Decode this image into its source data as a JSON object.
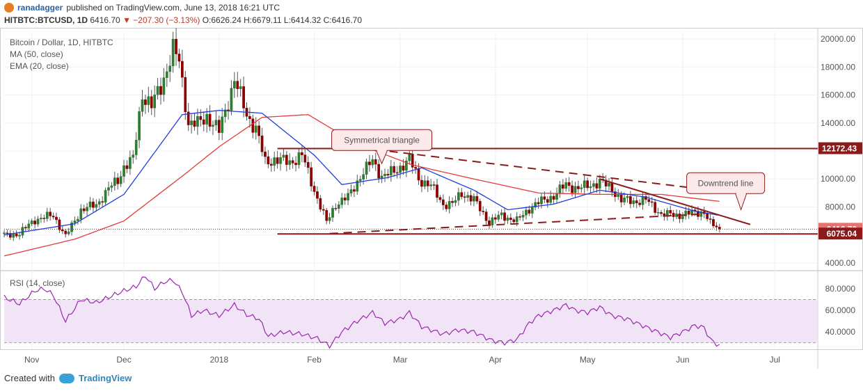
{
  "header": {
    "user": "ranadagger",
    "published": "published on TradingView.com, June 13, 2018 16:21 UTC",
    "symbol": "HITBTC:BTCUSD, 1D",
    "last": "6416.70",
    "change": "▼ −207.30 (−3.13%)",
    "ohlc": "O:6626.24 H:6679.11 L:6414.32 C:6416.70"
  },
  "footer": {
    "created_with": "Created with",
    "brand": "TradingView"
  },
  "colors": {
    "candle_up": "#2e7d32",
    "candle_down": "#8b0000",
    "ma": "#e53935",
    "ema": "#1e3fd8",
    "rsi": "#9c27b0",
    "rsi_band": "#f1e4f7",
    "annot": "#8b1a1a"
  },
  "chart_data": [
    {
      "type": "candlestick",
      "title": "Bitcoin / Dollar, 1D, HITBTC",
      "indicators": [
        "MA (50, close)",
        "EMA (20, close)"
      ],
      "ylim": [
        3500,
        20500
      ],
      "yticks": [
        4000,
        6000,
        8000,
        10000,
        12000,
        14000,
        16000,
        18000,
        20000
      ],
      "ytick_labels": [
        "4000.00",
        "6000.00",
        "8000.00",
        "10000.00",
        "12000.00",
        "14000.00",
        "16000.00",
        "18000.00",
        "20000.00"
      ],
      "xlim": [
        "2017-10-23",
        "2018-07-15"
      ],
      "x_tick_dates": [
        "2017-11-01",
        "2017-12-01",
        "2018-01-01",
        "2018-02-01",
        "2018-03-01",
        "2018-04-01",
        "2018-05-01",
        "2018-06-01",
        "2018-07-01"
      ],
      "x_tick_labels": [
        "Nov",
        "Dec",
        "2018",
        "Feb",
        "Mar",
        "Apr",
        "May",
        "Jun",
        "Jul"
      ],
      "close_anchors": [
        [
          "2017-10-23",
          5950
        ],
        [
          "2017-10-28",
          6100
        ],
        [
          "2017-11-02",
          7100
        ],
        [
          "2017-11-06",
          7300
        ],
        [
          "2017-11-08",
          7400
        ],
        [
          "2017-11-12",
          5900
        ],
        [
          "2017-11-17",
          7800
        ],
        [
          "2017-11-22",
          8150
        ],
        [
          "2017-11-26",
          9300
        ],
        [
          "2017-11-29",
          9900
        ],
        [
          "2017-12-01",
          10900
        ],
        [
          "2017-12-04",
          11400
        ],
        [
          "2017-12-07",
          16100
        ],
        [
          "2017-12-10",
          15200
        ],
        [
          "2017-12-13",
          16600
        ],
        [
          "2017-12-17",
          19200
        ],
        [
          "2017-12-19",
          18400
        ],
        [
          "2017-12-22",
          14000
        ],
        [
          "2017-12-25",
          13900
        ],
        [
          "2017-12-28",
          14500
        ],
        [
          "2018-01-01",
          13400
        ],
        [
          "2018-01-06",
          17100
        ],
        [
          "2018-01-10",
          14600
        ],
        [
          "2018-01-13",
          13600
        ],
        [
          "2018-01-16",
          11200
        ],
        [
          "2018-01-19",
          11400
        ],
        [
          "2018-01-24",
          11200
        ],
        [
          "2018-01-28",
          11700
        ],
        [
          "2018-02-01",
          9200
        ],
        [
          "2018-02-05",
          6900
        ],
        [
          "2018-02-08",
          8200
        ],
        [
          "2018-02-12",
          8700
        ],
        [
          "2018-02-16",
          10200
        ],
        [
          "2018-02-20",
          11300
        ],
        [
          "2018-02-23",
          10200
        ],
        [
          "2018-02-27",
          10500
        ],
        [
          "2018-03-04",
          11400
        ],
        [
          "2018-03-07",
          10000
        ],
        [
          "2018-03-11",
          9500
        ],
        [
          "2018-03-15",
          8200
        ],
        [
          "2018-03-18",
          8200
        ],
        [
          "2018-03-21",
          9000
        ],
        [
          "2018-03-25",
          8500
        ],
        [
          "2018-03-30",
          6900
        ],
        [
          "2018-04-03",
          7400
        ],
        [
          "2018-04-08",
          7000
        ],
        [
          "2018-04-12",
          7900
        ],
        [
          "2018-04-15",
          8300
        ],
        [
          "2018-04-20",
          8800
        ],
        [
          "2018-04-24",
          9600
        ],
        [
          "2018-04-28",
          9300
        ],
        [
          "2018-05-05",
          9800
        ],
        [
          "2018-05-09",
          9300
        ],
        [
          "2018-05-12",
          8500
        ],
        [
          "2018-05-16",
          8400
        ],
        [
          "2018-05-20",
          8500
        ],
        [
          "2018-05-25",
          7500
        ],
        [
          "2018-05-30",
          7400
        ],
        [
          "2018-06-05",
          7600
        ],
        [
          "2018-06-08",
          7650
        ],
        [
          "2018-06-10",
          6800
        ],
        [
          "2018-06-13",
          6416.7
        ]
      ],
      "ma50_anchors": [
        [
          "2017-10-23",
          4500
        ],
        [
          "2017-11-15",
          5700
        ],
        [
          "2017-12-01",
          7000
        ],
        [
          "2017-12-20",
          10200
        ],
        [
          "2018-01-01",
          12300
        ],
        [
          "2018-01-15",
          14400
        ],
        [
          "2018-01-30",
          14600
        ],
        [
          "2018-02-15",
          12500
        ],
        [
          "2018-03-05",
          11000
        ],
        [
          "2018-03-25",
          10000
        ],
        [
          "2018-04-15",
          9000
        ],
        [
          "2018-05-05",
          8900
        ],
        [
          "2018-05-25",
          8900
        ],
        [
          "2018-06-13",
          8400
        ]
      ],
      "ema20_anchors": [
        [
          "2017-10-23",
          6000
        ],
        [
          "2017-11-15",
          6800
        ],
        [
          "2017-12-01",
          8900
        ],
        [
          "2017-12-20",
          14600
        ],
        [
          "2018-01-01",
          14900
        ],
        [
          "2018-01-15",
          14700
        ],
        [
          "2018-02-01",
          11700
        ],
        [
          "2018-02-10",
          9600
        ],
        [
          "2018-02-25",
          10100
        ],
        [
          "2018-03-08",
          10800
        ],
        [
          "2018-03-25",
          9200
        ],
        [
          "2018-04-05",
          7800
        ],
        [
          "2018-04-20",
          8200
        ],
        [
          "2018-05-05",
          9200
        ],
        [
          "2018-05-20",
          8700
        ],
        [
          "2018-06-05",
          7700
        ],
        [
          "2018-06-13",
          7400
        ]
      ],
      "price_labels": [
        {
          "value": 12172.43,
          "text": "12172.43"
        },
        {
          "value": 6416.7,
          "text": "6416.70"
        },
        {
          "value": 6075.04,
          "text": "6075.04"
        }
      ],
      "annotations": [
        {
          "text": "Symmetrical triangle",
          "box_date": "2018-02-23",
          "box_value": 12780,
          "pointer_date": "2018-02-23",
          "pointer_value": 11100
        },
        {
          "text": "Downtrend line",
          "box_date": "2018-06-15",
          "box_value": 9700,
          "pointer_date": "2018-06-20",
          "pointer_value": 7800
        }
      ],
      "horizontal_lines": [
        {
          "from": "2018-01-20",
          "to": "2018-07-15",
          "value": 12172.43
        },
        {
          "from": "2018-01-20",
          "to": "2018-07-15",
          "value": 6075.04
        }
      ],
      "trend_lines": [
        {
          "from": [
            "2018-02-21",
            12100
          ],
          "to": [
            "2018-06-16",
            9050
          ],
          "style": "dashed"
        },
        {
          "from": [
            "2018-02-06",
            6100
          ],
          "to": [
            "2018-06-08",
            7500
          ],
          "style": "dashed"
        },
        {
          "from": [
            "2018-05-05",
            10000
          ],
          "to": [
            "2018-06-23",
            6750
          ],
          "style": "solid"
        }
      ]
    },
    {
      "type": "line",
      "title": "RSI (14, close)",
      "ylim": [
        24,
        96
      ],
      "yticks": [
        40,
        60,
        80
      ],
      "ytick_labels": [
        "40.0000",
        "60.0000",
        "80.0000"
      ],
      "band": [
        30,
        70
      ],
      "x_tick_dates": [
        "2017-11-01",
        "2017-12-01",
        "2018-01-01",
        "2018-02-01",
        "2018-03-01",
        "2018-04-01",
        "2018-05-01",
        "2018-06-01",
        "2018-07-01"
      ],
      "rsi_anchors": [
        [
          "2017-10-23",
          72
        ],
        [
          "2017-10-28",
          66
        ],
        [
          "2017-11-02",
          78
        ],
        [
          "2017-11-05",
          80
        ],
        [
          "2017-11-08",
          74
        ],
        [
          "2017-11-12",
          50
        ],
        [
          "2017-11-17",
          70
        ],
        [
          "2017-11-22",
          67
        ],
        [
          "2017-11-26",
          72
        ],
        [
          "2017-12-01",
          78
        ],
        [
          "2017-12-05",
          82
        ],
        [
          "2017-12-08",
          92
        ],
        [
          "2017-12-11",
          80
        ],
        [
          "2017-12-14",
          86
        ],
        [
          "2017-12-17",
          88
        ],
        [
          "2017-12-20",
          77
        ],
        [
          "2017-12-23",
          55
        ],
        [
          "2017-12-27",
          60
        ],
        [
          "2018-01-01",
          55
        ],
        [
          "2018-01-06",
          65
        ],
        [
          "2018-01-10",
          56
        ],
        [
          "2018-01-14",
          52
        ],
        [
          "2018-01-17",
          36
        ],
        [
          "2018-01-22",
          40
        ],
        [
          "2018-01-28",
          38
        ],
        [
          "2018-02-02",
          34
        ],
        [
          "2018-02-06",
          27
        ],
        [
          "2018-02-10",
          40
        ],
        [
          "2018-02-15",
          50
        ],
        [
          "2018-02-20",
          58
        ],
        [
          "2018-02-24",
          48
        ],
        [
          "2018-03-01",
          52
        ],
        [
          "2018-03-04",
          58
        ],
        [
          "2018-03-08",
          45
        ],
        [
          "2018-03-15",
          38
        ],
        [
          "2018-03-20",
          42
        ],
        [
          "2018-03-25",
          40
        ],
        [
          "2018-03-31",
          32
        ],
        [
          "2018-04-04",
          30
        ],
        [
          "2018-04-08",
          33
        ],
        [
          "2018-04-12",
          48
        ],
        [
          "2018-04-15",
          55
        ],
        [
          "2018-04-20",
          60
        ],
        [
          "2018-04-24",
          65
        ],
        [
          "2018-04-27",
          60
        ],
        [
          "2018-05-01",
          58
        ],
        [
          "2018-05-05",
          63
        ],
        [
          "2018-05-09",
          55
        ],
        [
          "2018-05-14",
          52
        ],
        [
          "2018-05-18",
          47
        ],
        [
          "2018-05-23",
          41
        ],
        [
          "2018-05-28",
          35
        ],
        [
          "2018-06-01",
          40
        ],
        [
          "2018-06-05",
          46
        ],
        [
          "2018-06-08",
          44
        ],
        [
          "2018-06-10",
          33
        ],
        [
          "2018-06-13",
          27
        ]
      ]
    }
  ]
}
